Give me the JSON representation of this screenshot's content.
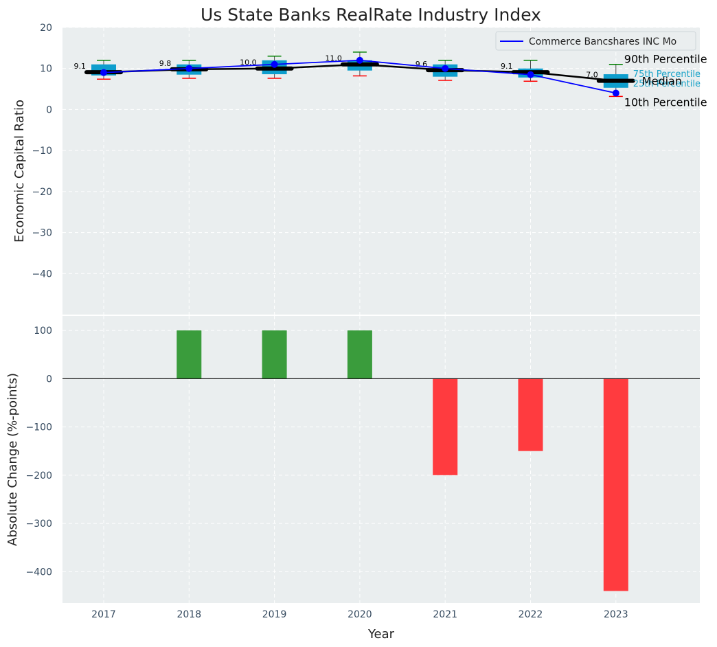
{
  "chart_data": [
    {
      "type": "box",
      "title": "Us State Banks RealRate Industry Index",
      "ylabel": "Economic Capital Ratio",
      "xlabel": "",
      "ylim": [
        -50,
        20
      ],
      "yticks": [
        20,
        10,
        0,
        -10,
        -20,
        -30,
        -40
      ],
      "ytick_labels": [
        "20",
        "10",
        "0",
        "−10",
        "−20",
        "−30",
        "−40"
      ],
      "grid": true,
      "categories": [
        "2017",
        "2018",
        "2019",
        "2020",
        "2021",
        "2022",
        "2023"
      ],
      "boxes": [
        {
          "p10": 7.4,
          "p25": 8.3,
          "median": 9.1,
          "p75": 11.0,
          "p90": 12.0
        },
        {
          "p10": 7.6,
          "p25": 8.5,
          "median": 9.8,
          "p75": 11.0,
          "p90": 12.0
        },
        {
          "p10": 7.6,
          "p25": 8.6,
          "median": 10.0,
          "p75": 12.0,
          "p90": 13.0
        },
        {
          "p10": 8.2,
          "p25": 9.5,
          "median": 11.0,
          "p75": 12.0,
          "p90": 14.0
        },
        {
          "p10": 7.1,
          "p25": 8.0,
          "median": 9.6,
          "p75": 11.0,
          "p90": 12.0
        },
        {
          "p10": 6.9,
          "p25": 7.8,
          "median": 9.1,
          "p75": 10.0,
          "p90": 12.0
        },
        {
          "p10": 3.2,
          "p25": 5.3,
          "median": 7.0,
          "p75": 8.6,
          "p90": 11.0
        }
      ],
      "median_labels": [
        "9.1",
        "9.8",
        "10.0",
        "11.0",
        "9.6",
        "9.1",
        "7.0"
      ],
      "series": [
        {
          "name": "Commerce Bancshares INC Mo",
          "color": "#0000ff",
          "values": [
            9.0,
            10.0,
            11.0,
            12.0,
            10.0,
            8.5,
            4.0
          ]
        }
      ],
      "legend": {
        "label": "Commerce Bancshares INC Mo",
        "placement": "top-right"
      },
      "annotations": {
        "p90": "90th Percentile",
        "p75": "75th Percentile",
        "median": "Median",
        "p25": "25th Percentile",
        "p10": "10th Percentile"
      },
      "colors": {
        "box": "#0e9ecd",
        "median": "#000000",
        "whisker_top": "#008000",
        "whisker_bottom": "#ff0000",
        "background": "#eaeeef"
      }
    },
    {
      "type": "bar",
      "ylabel": "Absolute Change (%-points)",
      "xlabel": "Year",
      "ylim": [
        -465,
        130
      ],
      "yticks": [
        100,
        0,
        -100,
        -200,
        -300,
        -400
      ],
      "ytick_labels": [
        "100",
        "0",
        "−100",
        "−200",
        "−300",
        "−400"
      ],
      "grid": true,
      "categories": [
        "2017",
        "2018",
        "2019",
        "2020",
        "2021",
        "2022",
        "2023"
      ],
      "values": [
        0,
        100,
        100,
        100,
        -200,
        -150,
        -440
      ],
      "colors": {
        "positive": "#3a9c3c",
        "negative": "#ff3b3f",
        "background": "#eaeeef"
      }
    }
  ]
}
